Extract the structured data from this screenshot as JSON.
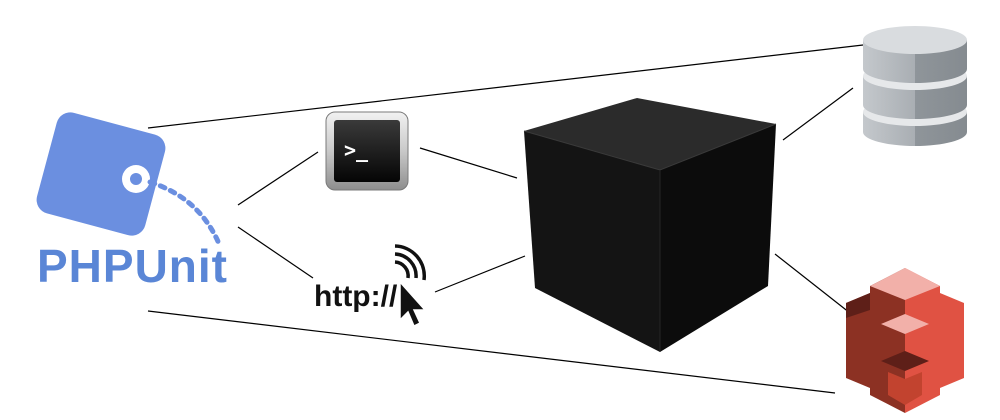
{
  "diagram": {
    "phpunit": {
      "label": "PHPUnit",
      "color": "#6b8fe0",
      "icon": "phpunit-tag-logo"
    },
    "terminal": {
      "prompt": ">_",
      "icon": "terminal-icon"
    },
    "http": {
      "label": "http://",
      "icon": "http-cursor-icon"
    },
    "black_box": {
      "icon": "black-box-cube-icon",
      "color": "#151515"
    },
    "database": {
      "icon": "database-icon",
      "color": "#9ea3a8"
    },
    "aws_s3": {
      "icon": "aws-s3-icon",
      "color": "#e05243"
    }
  }
}
